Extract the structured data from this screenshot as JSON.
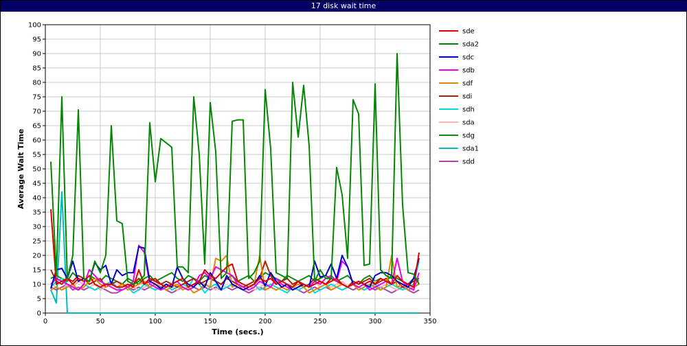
{
  "window": {
    "title": "17 disk wait time"
  },
  "chart_data": {
    "type": "line",
    "title": "17 disk wait time",
    "xlabel": "Time (secs.)",
    "ylabel": "Average Wait Time",
    "xlim": [
      0,
      350
    ],
    "ylim": [
      0,
      100
    ],
    "xticks": [
      0,
      50,
      100,
      150,
      200,
      250,
      300,
      350
    ],
    "yticks": [
      0,
      5,
      10,
      15,
      20,
      25,
      30,
      35,
      40,
      45,
      50,
      55,
      60,
      65,
      70,
      75,
      80,
      85,
      90,
      95,
      100
    ],
    "grid": true,
    "legend_position": "right",
    "x": [
      5,
      10,
      15,
      20,
      25,
      30,
      35,
      40,
      45,
      50,
      55,
      60,
      65,
      70,
      75,
      80,
      85,
      90,
      95,
      100,
      105,
      110,
      115,
      120,
      125,
      130,
      135,
      140,
      145,
      150,
      155,
      160,
      165,
      170,
      175,
      180,
      185,
      190,
      195,
      200,
      205,
      210,
      215,
      220,
      225,
      230,
      235,
      240,
      245,
      250,
      255,
      260,
      265,
      270,
      275,
      280,
      285,
      290,
      295,
      300,
      305,
      310,
      315,
      320,
      325,
      330,
      335,
      340
    ],
    "series": [
      {
        "name": "sde",
        "color": "#e00000",
        "values": [
          36,
          10,
          11,
          12,
          10,
          12,
          11,
          13,
          10,
          9,
          10,
          10,
          9,
          9,
          10,
          9,
          15,
          10,
          12,
          11,
          10,
          9,
          10,
          11,
          12,
          9,
          10,
          11,
          15,
          13,
          12,
          14,
          16,
          17,
          11,
          10,
          9,
          10,
          12,
          11,
          12,
          10,
          11,
          10,
          9,
          11,
          10,
          9,
          10,
          11,
          10,
          11,
          12,
          10,
          9,
          10,
          11,
          10,
          11,
          10,
          12,
          11,
          10,
          13,
          11,
          10,
          9,
          21
        ]
      },
      {
        "name": "sda2",
        "color": "#008800",
        "values": [
          52.5,
          13,
          75,
          12,
          20,
          70.5,
          12,
          11,
          18,
          14,
          20,
          65,
          32,
          31,
          11,
          10,
          11,
          13,
          66,
          45.5,
          60.5,
          59,
          57.5,
          16,
          16,
          14,
          75,
          55,
          17,
          73,
          56,
          12,
          14,
          66.5,
          67,
          67,
          12,
          14,
          18,
          77.5,
          57,
          14,
          13,
          12,
          80,
          61,
          79,
          58,
          11,
          15,
          12,
          12,
          50.5,
          41,
          19,
          74,
          69,
          16.5,
          17,
          79.5,
          15,
          13,
          12,
          90,
          37.5,
          14,
          13.5,
          10
        ]
      },
      {
        "name": "sdc",
        "color": "#0000cc",
        "values": [
          8.5,
          15,
          15.5,
          12,
          18,
          11,
          12,
          11,
          17.5,
          15,
          16.5,
          10,
          15,
          13,
          14,
          14,
          23,
          22.5,
          11,
          10,
          8.5,
          10,
          9,
          16,
          12,
          10,
          9,
          11,
          9,
          14,
          11,
          8,
          13,
          10,
          9,
          8,
          9,
          10,
          13,
          9.5,
          14,
          11,
          9,
          10,
          8,
          9,
          10,
          9,
          18,
          12.5,
          13,
          17,
          12,
          20,
          16,
          10,
          11,
          10,
          9,
          13,
          14,
          14,
          13,
          11,
          10,
          9,
          12,
          19
        ]
      },
      {
        "name": "sdb",
        "color": "#ee00ee",
        "values": [
          10,
          12,
          11,
          10,
          9,
          8,
          10,
          15,
          13,
          11,
          10,
          9,
          8,
          8,
          9,
          11,
          23.5,
          21,
          10,
          9,
          8,
          9,
          10,
          11,
          9,
          8,
          9,
          13,
          14,
          12,
          16,
          15,
          14,
          13,
          10,
          9,
          8,
          9,
          11,
          10,
          9,
          12,
          10,
          9,
          8,
          9,
          10,
          9,
          11,
          10,
          12,
          13,
          11,
          18,
          16,
          10,
          9,
          10,
          8,
          9,
          10,
          11,
          10,
          19,
          11,
          9,
          8,
          14
        ]
      },
      {
        "name": "sdf",
        "color": "#e08800",
        "values": [
          8,
          9,
          8,
          9,
          10,
          8,
          9,
          11,
          12,
          10,
          9,
          10,
          9,
          10,
          8,
          9,
          10,
          11,
          9,
          10,
          9,
          8,
          9,
          10,
          8,
          9,
          7,
          8,
          10,
          9,
          19,
          18,
          20,
          9,
          10,
          8,
          9,
          10,
          20,
          8,
          9,
          8,
          9,
          8,
          9,
          10,
          9,
          7,
          8,
          9,
          10,
          8,
          9,
          10,
          9,
          10,
          8,
          9,
          10,
          9,
          8,
          9,
          20,
          9,
          10,
          8,
          9,
          10
        ]
      },
      {
        "name": "sdi",
        "color": "#aa2200",
        "values": [
          15,
          11,
          10,
          12,
          11,
          13,
          12,
          10,
          11,
          12,
          9,
          10,
          11,
          10,
          9,
          10,
          12,
          10,
          11,
          12,
          10,
          11,
          10,
          9,
          10,
          11,
          12,
          10,
          11,
          12,
          11,
          10,
          12,
          11,
          10,
          9,
          10,
          11,
          12,
          18,
          13,
          10,
          11,
          12,
          10,
          11,
          9,
          10,
          12,
          11,
          10,
          12,
          11,
          10,
          9,
          11,
          10,
          11,
          12,
          10,
          11,
          12,
          10,
          11,
          9,
          10,
          11,
          12
        ]
      },
      {
        "name": "sdh",
        "color": "#00dddd",
        "values": [
          9,
          11,
          12,
          10,
          9,
          8,
          10,
          9,
          8,
          9,
          10,
          11,
          9,
          8,
          9,
          7,
          8,
          10,
          9,
          8,
          9,
          10,
          8,
          9,
          10,
          9,
          12,
          10,
          7,
          9,
          10,
          8,
          9,
          10,
          9,
          8,
          9,
          10,
          8,
          9,
          10,
          9,
          8,
          7,
          9,
          8,
          9,
          10,
          7,
          8,
          9,
          10,
          9,
          8,
          9,
          10,
          9,
          8,
          9,
          10,
          8,
          9,
          10,
          9,
          8,
          9,
          10,
          18
        ]
      },
      {
        "name": "sda",
        "color": "#ffb0b0",
        "values": [
          10,
          9,
          8,
          10,
          9,
          11,
          10,
          9,
          10,
          8,
          9,
          10,
          11,
          9,
          10,
          9,
          8,
          9,
          10,
          11,
          9,
          10,
          9,
          8,
          10,
          9,
          10,
          11,
          10,
          9,
          8,
          10,
          9,
          10,
          11,
          9,
          10,
          8,
          9,
          10,
          9,
          11,
          10,
          9,
          10,
          8,
          9,
          10,
          11,
          9,
          10,
          9,
          10,
          11,
          9,
          10,
          8,
          9,
          10,
          11,
          9,
          10,
          9,
          8,
          10,
          9,
          10,
          11
        ]
      },
      {
        "name": "sdg",
        "color": "#118811",
        "values": [
          12,
          13,
          12,
          11,
          14,
          12,
          11,
          13,
          12,
          11,
          13,
          12,
          11,
          10,
          12,
          11,
          10,
          12,
          13,
          11,
          12,
          13,
          14,
          12,
          11,
          13,
          12,
          11,
          13,
          12,
          11,
          10,
          12,
          13,
          11,
          12,
          13,
          11,
          12,
          14,
          13,
          12,
          11,
          13,
          12,
          11,
          12,
          13,
          11,
          12,
          13,
          12,
          11,
          12,
          13,
          11,
          10,
          12,
          13,
          11,
          12,
          11,
          13,
          12,
          11,
          10,
          12,
          11
        ]
      },
      {
        "name": "sda1",
        "color": "#00bbbb",
        "values": [
          8,
          3.5,
          42,
          0,
          0,
          0,
          0,
          0,
          0,
          0,
          0,
          0,
          0,
          0,
          0,
          0,
          0,
          0,
          0,
          0,
          0,
          0,
          0,
          0,
          0,
          0,
          0,
          0,
          0,
          0,
          0,
          0,
          0,
          0,
          0,
          0,
          0,
          0,
          0,
          0,
          0,
          0,
          0,
          0,
          0,
          0,
          0,
          0,
          0,
          0,
          0,
          0,
          0,
          0,
          0,
          0,
          0,
          0,
          0,
          0,
          0,
          0,
          0,
          0,
          0,
          0,
          0,
          0
        ]
      },
      {
        "name": "sdd",
        "color": "#aa44aa",
        "values": [
          9,
          8,
          9,
          10,
          8,
          9,
          8,
          9,
          8,
          9,
          8,
          7,
          7,
          8,
          9,
          8,
          9,
          8,
          9,
          8,
          9,
          8,
          7,
          8,
          9,
          8,
          9,
          8,
          9,
          8,
          9,
          8,
          9,
          8,
          9,
          8,
          7,
          8,
          9,
          8,
          9,
          8,
          9,
          8,
          9,
          8,
          7,
          8,
          9,
          8,
          9,
          8,
          9,
          8,
          9,
          8,
          9,
          8,
          9,
          8,
          9,
          8,
          7,
          8,
          9,
          8,
          7,
          8
        ]
      }
    ]
  }
}
